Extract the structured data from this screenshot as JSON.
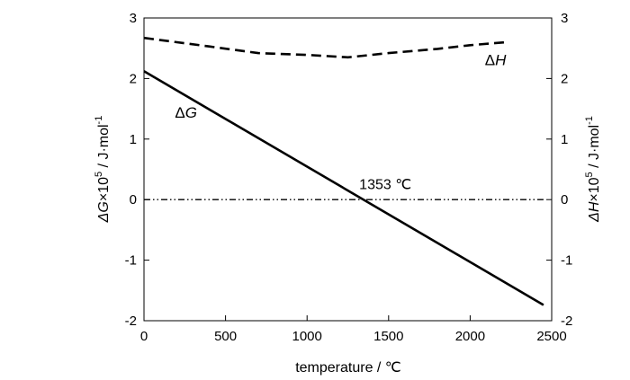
{
  "chart_data": {
    "type": "line",
    "xlabel": "temperature / ℃",
    "ylabel_left": {
      "symbol": "ΔG",
      "times": "×10",
      "exp": "5",
      "unit": " / J·mol",
      "unit_exp": "-1"
    },
    "ylabel_right": {
      "symbol": "ΔH",
      "times": "×10",
      "exp": "5",
      "unit": " / J·mol",
      "unit_exp": "-1"
    },
    "xlim": [
      0,
      2500
    ],
    "ylim": [
      -2,
      3
    ],
    "x_ticks": [
      0,
      500,
      1000,
      1500,
      2000,
      2500
    ],
    "y_ticks": [
      -2,
      -1,
      0,
      1,
      2,
      3
    ],
    "grid": false,
    "legend": "none",
    "series": [
      {
        "name": "ΔG",
        "style": "solid",
        "points": [
          [
            0,
            2.12
          ],
          [
            2450,
            -1.74
          ]
        ]
      },
      {
        "name": "ΔH",
        "style": "dashed",
        "points": [
          [
            0,
            2.67
          ],
          [
            400,
            2.53
          ],
          [
            700,
            2.42
          ],
          [
            1000,
            2.39
          ],
          [
            1250,
            2.35
          ],
          [
            1500,
            2.42
          ],
          [
            1800,
            2.49
          ],
          [
            2000,
            2.55
          ],
          [
            2220,
            2.6
          ]
        ]
      },
      {
        "name": "",
        "style": "dash-dot-dot",
        "points": [
          [
            0,
            0
          ],
          [
            2450,
            0
          ]
        ]
      }
    ],
    "annotations": [
      {
        "text": "ΔG",
        "x": 190,
        "y": 1.35,
        "italic": true
      },
      {
        "text": "ΔH",
        "x": 2090,
        "y": 2.22,
        "italic": true
      },
      {
        "text": "1353 ℃",
        "x": 1320,
        "y": 0.17,
        "italic": false
      }
    ]
  }
}
